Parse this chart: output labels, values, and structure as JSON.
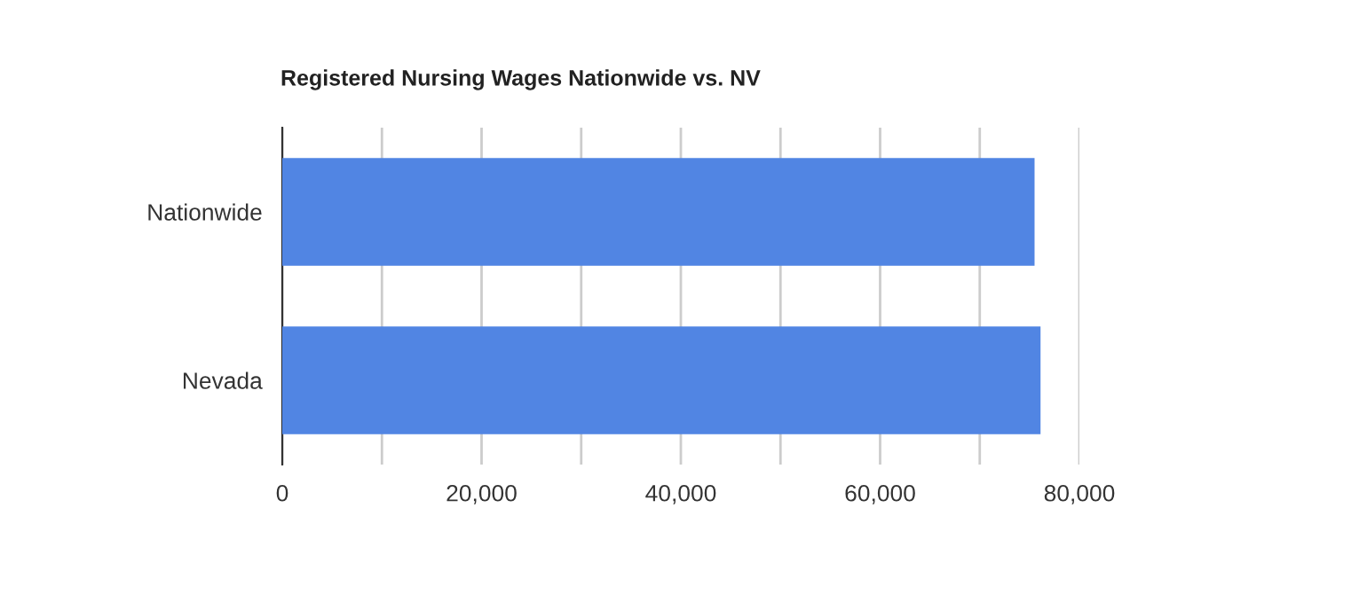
{
  "chart_data": {
    "type": "bar",
    "orientation": "horizontal",
    "title": "Registered Nursing Wages Nationwide vs. NV",
    "categories": [
      "Nationwide",
      "Nevada"
    ],
    "values": [
      75500,
      76100
    ],
    "color": "#5185e3",
    "xlim": [
      0,
      80000
    ],
    "xticks": [
      0,
      {
        "value": 10000,
        "label": null
      },
      {
        "value": 20000,
        "label": "20,000"
      },
      {
        "value": 30000,
        "label": null
      },
      {
        "value": 40000,
        "label": "40,000"
      },
      {
        "value": 50000,
        "label": null
      },
      {
        "value": 60000,
        "label": "60,000"
      },
      {
        "value": 70000,
        "label": null
      },
      {
        "value": 80000,
        "label": "80,000"
      }
    ],
    "grid": "x"
  }
}
